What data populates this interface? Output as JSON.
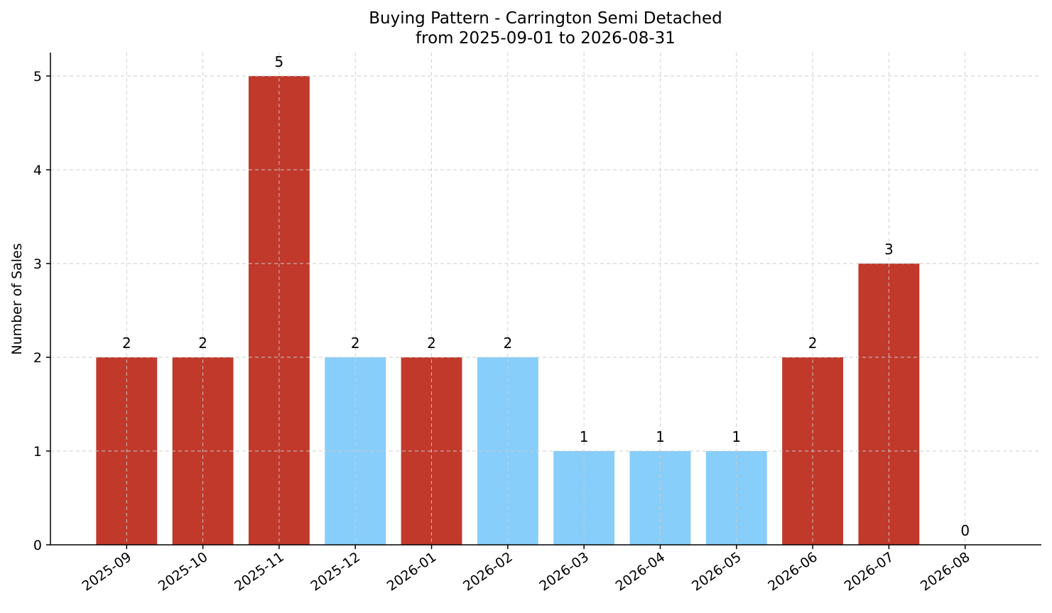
{
  "chart_data": {
    "type": "bar",
    "title": "Buying Pattern - Carrington Semi Detached",
    "subtitle": "from 2025-09-01 to 2026-08-31",
    "xlabel": "",
    "ylabel": "Number of Sales",
    "categories": [
      "2025-09",
      "2025-10",
      "2025-11",
      "2025-12",
      "2026-01",
      "2026-02",
      "2026-03",
      "2026-04",
      "2026-05",
      "2026-06",
      "2026-07",
      "2026-08"
    ],
    "values": [
      2,
      2,
      5,
      2,
      2,
      2,
      1,
      1,
      1,
      2,
      3,
      0
    ],
    "bar_colors": [
      "#c0392b",
      "#c0392b",
      "#c0392b",
      "#87cefa",
      "#c0392b",
      "#87cefa",
      "#87cefa",
      "#87cefa",
      "#87cefa",
      "#c0392b",
      "#c0392b",
      "#c0392b"
    ],
    "yticks": [
      0,
      1,
      2,
      3,
      4,
      5
    ],
    "ylim": [
      0,
      5.25
    ],
    "grid": true,
    "legend": "none"
  }
}
